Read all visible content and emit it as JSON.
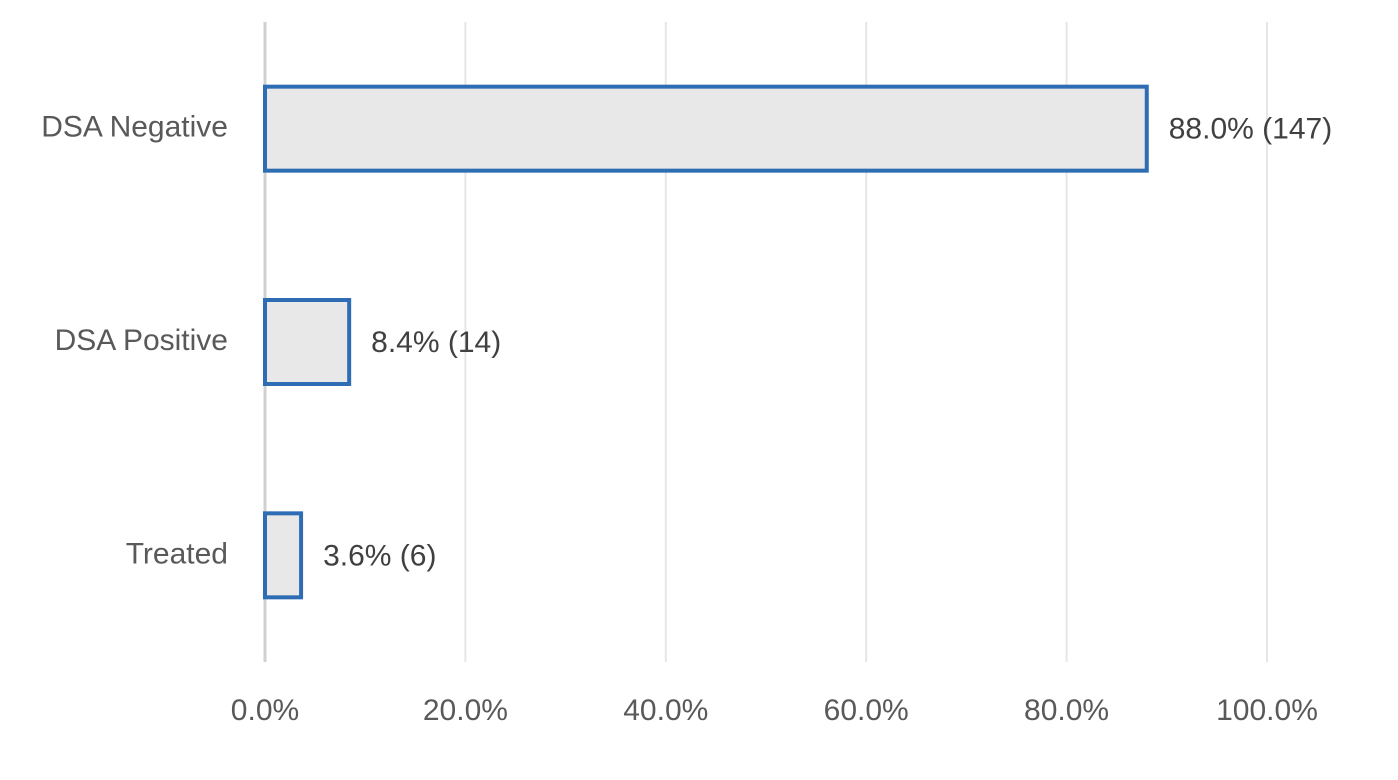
{
  "chart_data": {
    "type": "bar",
    "categories": [
      "DSA Negative",
      "DSA Positive",
      "Treated"
    ],
    "values": [
      88.0,
      8.4,
      3.6
    ],
    "value_labels": [
      "88.0% (147)",
      "8.4% (14)",
      "3.6% (6)"
    ],
    "color": "#e8e8e8",
    "edgecolor": "#2e6db4",
    "xlim": [
      0,
      100
    ],
    "xticks": [
      {
        "value": 0,
        "label": "0.0%"
      },
      {
        "value": 20,
        "label": "20.0%"
      },
      {
        "value": 40,
        "label": "40.0%"
      },
      {
        "value": 60,
        "label": "60.0%"
      },
      {
        "value": 80,
        "label": "80.0%"
      },
      {
        "value": 100,
        "label": "100.0%"
      }
    ],
    "grid": true
  }
}
